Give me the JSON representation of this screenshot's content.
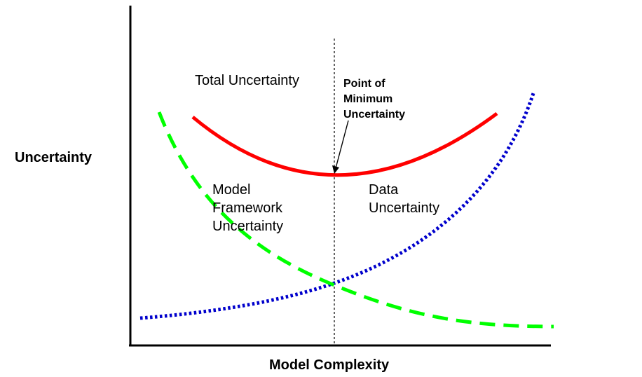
{
  "axes": {
    "y_label": "Uncertainty",
    "x_label": "Model Complexity"
  },
  "curves": {
    "total": {
      "label": "Total Uncertainty",
      "color": "#ff0000",
      "style": "solid"
    },
    "model_framework": {
      "label_lines": [
        "Model",
        "Framework",
        "Uncertainty"
      ],
      "color": "#00ff00",
      "style": "dashed"
    },
    "data": {
      "label_lines": [
        "Data",
        "Uncertainty"
      ],
      "color": "#0000cc",
      "style": "dotted"
    }
  },
  "minimum_marker": {
    "label_lines": [
      "Point of",
      "Minimum",
      "Uncertainty"
    ],
    "line_style": "dotted-vertical",
    "arrow": true
  }
}
